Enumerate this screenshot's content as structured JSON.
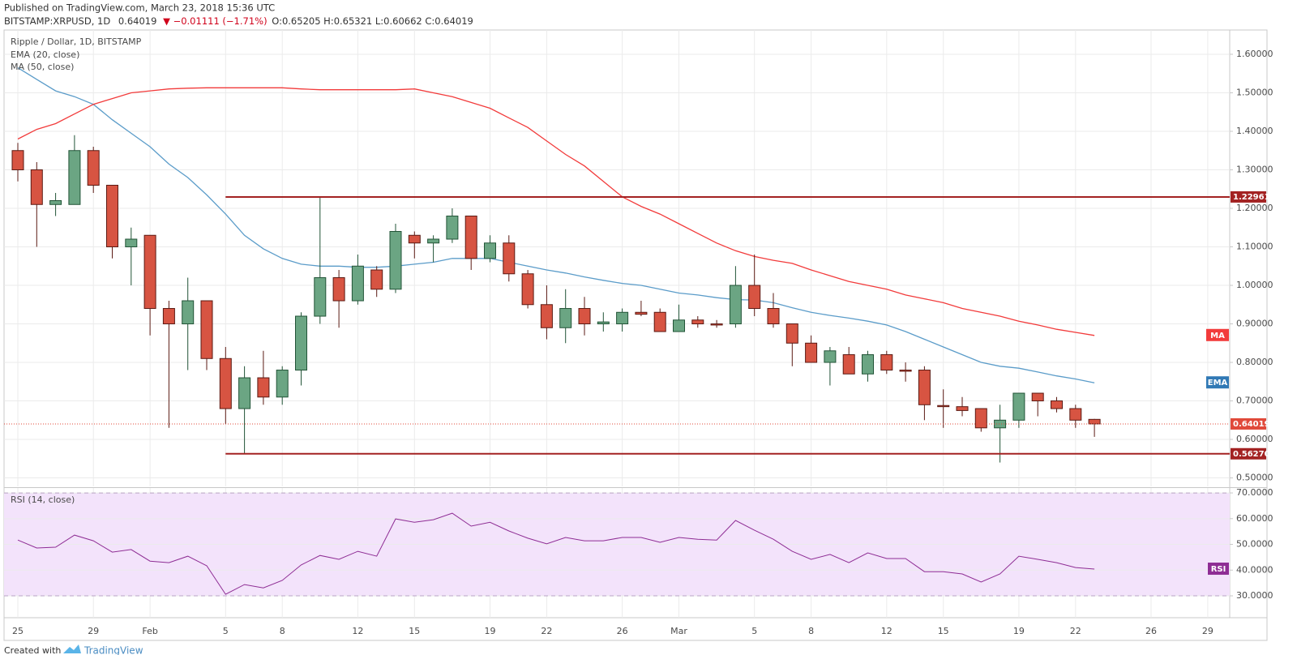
{
  "header": {
    "published": "Published on TradingView.com, March 23, 2018 15:36 UTC",
    "symbol": "BITSTAMP:XRPUSD, 1D",
    "quote": "0.64019",
    "change": "▼ −0.01111 (−1.71%)",
    "ohlc": "O:0.65205 H:0.65321 L:0.60662 C:0.64019"
  },
  "footer": {
    "created": "Created with",
    "brand": "TradingView"
  },
  "chart_data": [
    {
      "type": "candlestick",
      "title": "Ripple / Dollar, 1D, BITSTAMP",
      "up_color": "#6ba583",
      "up_edge": "#225437",
      "down_color": "#d75442",
      "down_edge": "#5b1a13",
      "open": [
        1.35,
        1.3,
        1.21,
        1.21,
        1.35,
        1.26,
        1.1,
        1.13,
        0.94,
        0.9,
        0.96,
        0.81,
        0.68,
        0.76,
        0.71,
        0.78,
        0.92,
        1.02,
        0.96,
        1.04,
        0.99,
        1.13,
        1.11,
        1.12,
        1.18,
        1.07,
        1.11,
        1.03,
        0.95,
        0.89,
        0.94,
        0.9,
        0.9,
        0.93,
        0.93,
        0.88,
        0.91,
        0.9,
        0.9,
        1.0,
        0.94,
        0.9,
        0.85,
        0.8,
        0.82,
        0.77,
        0.82,
        0.78,
        0.78,
        0.688,
        0.685,
        0.68,
        0.63,
        0.65,
        0.72,
        0.7,
        0.68,
        0.65205
      ],
      "high": [
        1.37,
        1.32,
        1.24,
        1.39,
        1.36,
        1.26,
        1.15,
        1.13,
        0.96,
        1.02,
        0.96,
        0.84,
        0.79,
        0.83,
        0.79,
        0.93,
        1.2296,
        1.04,
        1.08,
        1.05,
        1.16,
        1.14,
        1.13,
        1.2,
        1.18,
        1.13,
        1.13,
        1.04,
        1.0,
        0.99,
        0.97,
        0.93,
        0.94,
        0.96,
        0.94,
        0.95,
        0.92,
        0.91,
        1.05,
        1.08,
        0.98,
        0.9,
        0.87,
        0.84,
        0.84,
        0.83,
        0.83,
        0.8,
        0.79,
        0.73,
        0.71,
        0.68,
        0.69,
        0.72,
        0.72,
        0.71,
        0.69,
        0.65321
      ],
      "low": [
        1.27,
        1.1,
        1.18,
        1.21,
        1.24,
        1.07,
        1.0,
        0.87,
        0.63,
        0.78,
        0.78,
        0.64,
        0.5627,
        0.69,
        0.69,
        0.74,
        0.9,
        0.89,
        0.95,
        0.97,
        0.98,
        1.07,
        1.06,
        1.11,
        1.04,
        1.06,
        1.01,
        0.94,
        0.86,
        0.85,
        0.87,
        0.88,
        0.88,
        0.92,
        0.88,
        0.88,
        0.89,
        0.89,
        0.89,
        0.92,
        0.89,
        0.79,
        0.8,
        0.74,
        0.77,
        0.75,
        0.77,
        0.75,
        0.65,
        0.63,
        0.66,
        0.62,
        0.54,
        0.63,
        0.66,
        0.67,
        0.63,
        0.60662
      ],
      "close": [
        1.3,
        1.21,
        1.22,
        1.35,
        1.26,
        1.1,
        1.12,
        0.94,
        0.9,
        0.96,
        0.81,
        0.68,
        0.76,
        0.71,
        0.78,
        0.92,
        1.02,
        0.96,
        1.05,
        0.99,
        1.14,
        1.11,
        1.12,
        1.18,
        1.07,
        1.11,
        1.03,
        0.95,
        0.89,
        0.94,
        0.9,
        0.905,
        0.93,
        0.925,
        0.88,
        0.91,
        0.9,
        0.897,
        1.0,
        0.94,
        0.9,
        0.85,
        0.8,
        0.83,
        0.77,
        0.82,
        0.78,
        0.777,
        0.69,
        0.685,
        0.675,
        0.63,
        0.65,
        0.72,
        0.7,
        0.68,
        0.65,
        0.64019
      ],
      "overlays": [
        {
          "name": "EMA (20, close)",
          "tag": "EMA",
          "color": "#5b9cc9",
          "tag_color": "#3179b5",
          "values": [
            1.565,
            1.535,
            1.505,
            1.49,
            1.47,
            1.43,
            1.395,
            1.36,
            1.315,
            1.28,
            1.235,
            1.185,
            1.13,
            1.095,
            1.07,
            1.055,
            1.05,
            1.05,
            1.047,
            1.047,
            1.05,
            1.055,
            1.06,
            1.07,
            1.07,
            1.07,
            1.06,
            1.05,
            1.04,
            1.032,
            1.022,
            1.013,
            1.005,
            1.0,
            0.99,
            0.98,
            0.975,
            0.968,
            0.963,
            0.962,
            0.955,
            0.942,
            0.93,
            0.922,
            0.915,
            0.907,
            0.897,
            0.88,
            0.86,
            0.84,
            0.82,
            0.8,
            0.79,
            0.785,
            0.775,
            0.765,
            0.757,
            0.747
          ]
        },
        {
          "name": "MA (50, close)",
          "tag": "MA",
          "color": "#f23b3b",
          "tag_color": "#f23b3b",
          "values": [
            1.38,
            1.405,
            1.42,
            1.445,
            1.47,
            1.485,
            1.5,
            1.505,
            1.51,
            1.512,
            1.513,
            1.513,
            1.513,
            1.513,
            1.513,
            1.51,
            1.508,
            1.508,
            1.508,
            1.508,
            1.508,
            1.51,
            1.5,
            1.49,
            1.475,
            1.46,
            1.435,
            1.41,
            1.375,
            1.34,
            1.31,
            1.27,
            1.23,
            1.205,
            1.185,
            1.16,
            1.135,
            1.11,
            1.09,
            1.075,
            1.065,
            1.057,
            1.04,
            1.025,
            1.01,
            1.0,
            0.99,
            0.975,
            0.965,
            0.955,
            0.94,
            0.93,
            0.92,
            0.907,
            0.897,
            0.886,
            0.878,
            0.87
          ]
        }
      ],
      "levels": [
        1.22961,
        {
          "value": 0.5627,
          "label": "0.56270"
        }
      ],
      "level_color": "#a32222",
      "last": 0.64019,
      "last_color": "#e0493a",
      "ylim": [
        0.478,
        1.661
      ],
      "yticks": [
        {
          "value": 0.5,
          "label": "0.50000"
        },
        {
          "value": 0.6,
          "label": "0.60000"
        },
        {
          "value": 0.7,
          "label": "0.70000"
        },
        {
          "value": 0.8,
          "label": "0.80000"
        },
        {
          "value": 0.9,
          "label": "0.90000"
        },
        {
          "value": 1.0,
          "label": "1.00000"
        },
        {
          "value": 1.1,
          "label": "1.10000"
        },
        {
          "value": 1.2,
          "label": "1.20000"
        },
        {
          "value": 1.3,
          "label": "1.30000"
        },
        {
          "value": 1.4,
          "label": "1.40000"
        },
        {
          "value": 1.5,
          "label": "1.50000"
        },
        {
          "value": 1.6,
          "label": "1.60000"
        }
      ],
      "grid": true
    },
    {
      "type": "line",
      "title": "RSI (14, close)",
      "tag": "RSI",
      "color": "#8e2d94",
      "band": [
        30,
        70
      ],
      "band_color": "#f3e3fb",
      "categories": [
        "25",
        null,
        null,
        null,
        "29",
        null,
        null,
        "Feb",
        null,
        null,
        null,
        "5",
        null,
        null,
        "8",
        null,
        null,
        null,
        "12",
        null,
        null,
        "15",
        null,
        null,
        null,
        "19",
        null,
        null,
        "22",
        null,
        null,
        null,
        "26",
        null,
        null,
        "Mar",
        null,
        null,
        null,
        "5",
        null,
        null,
        "8",
        null,
        null,
        null,
        "12",
        null,
        null,
        "15",
        null,
        null,
        null,
        "19",
        null,
        null,
        "22",
        null,
        null,
        null,
        "26",
        null,
        null,
        "29"
      ],
      "values": [
        51.7,
        48.6,
        48.9,
        53.6,
        51.4,
        47.0,
        48.0,
        43.5,
        42.9,
        45.4,
        41.7,
        30.6,
        34.4,
        33.1,
        36.0,
        42.0,
        45.7,
        44.2,
        47.3,
        45.4,
        59.9,
        58.6,
        59.6,
        62.1,
        57.1,
        58.6,
        55.2,
        52.4,
        50.2,
        52.7,
        51.4,
        51.4,
        52.7,
        52.7,
        50.8,
        52.7,
        52.0,
        51.7,
        59.3,
        55.5,
        52.0,
        47.3,
        44.2,
        46.1,
        42.9,
        46.7,
        44.5,
        44.5,
        39.4,
        39.4,
        38.5,
        35.4,
        38.5,
        45.4,
        44.2,
        42.9,
        41.0,
        40.4,
        null,
        null,
        null,
        null,
        null,
        null
      ],
      "ylim": [
        21.5,
        71.6
      ],
      "yticks": [
        {
          "value": 30,
          "label": "30.0000"
        },
        {
          "value": 40,
          "label": "40.0000"
        },
        {
          "value": 50,
          "label": "50.0000"
        },
        {
          "value": 60,
          "label": "60.0000"
        },
        {
          "value": 70,
          "label": "70.0000"
        }
      ],
      "grid": true
    }
  ]
}
